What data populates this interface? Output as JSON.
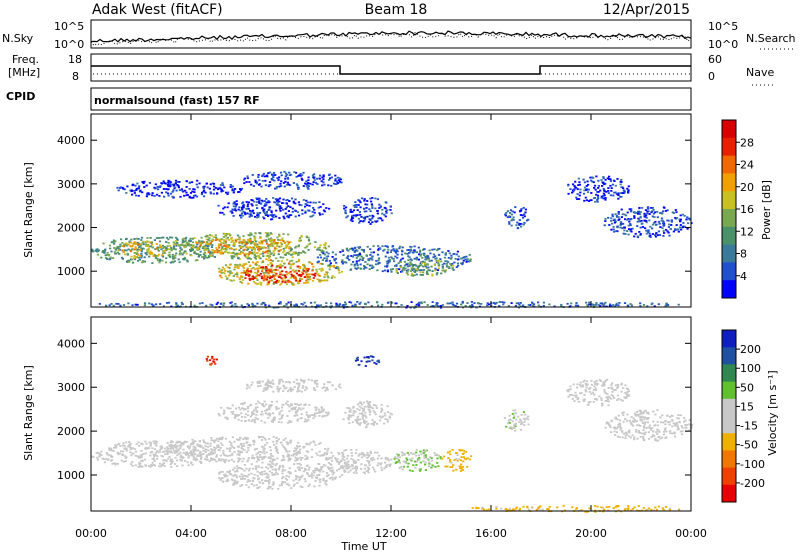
{
  "header": {
    "title_left": "Adak West (fitACF)",
    "title_center": "Beam 18",
    "title_right": "12/Apr/2015"
  },
  "top_panels": {
    "nsky_label": "N.Sky",
    "nsky_ticks": [
      "10^5",
      "10^0"
    ],
    "nsearch_label": "N.Search",
    "nsearch_ticks": [
      "10^5",
      "10^0"
    ],
    "freq_label_1": "Freq.",
    "freq_label_2": "[MHz]",
    "freq_ticks": [
      "18",
      "8"
    ],
    "nave_label": "Nave",
    "nave_ticks": [
      "60",
      "0"
    ],
    "cpid_label": "CPID",
    "cpid_text": "normalsound (fast) 157 RF"
  },
  "chart_data": [
    {
      "type": "heatmap",
      "panel": "power",
      "ylabel": "Slant Range [km]",
      "yticks": [
        "4000",
        "3000",
        "2000",
        "1000"
      ],
      "ylim": [
        180,
        4600
      ],
      "xlim": [
        0,
        24
      ],
      "colorbar_label": "Power [dB]",
      "colorbar_ticks": [
        "28",
        "24",
        "20",
        "16",
        "12",
        "8",
        "4"
      ],
      "colorscale": [
        "#0000ff",
        "#2050d0",
        "#3c7a9a",
        "#4a9068",
        "#7aa850",
        "#c8c020",
        "#f0a000",
        "#f06800",
        "#e82000",
        "#d80000"
      ],
      "regions": [
        {
          "t0": 0.0,
          "t1": 5.0,
          "r0": 1200,
          "r1": 1800,
          "v": 12
        },
        {
          "t0": 1.0,
          "t1": 3.0,
          "r0": 1300,
          "r1": 1700,
          "v": 18
        },
        {
          "t0": 3.0,
          "t1": 9.5,
          "r0": 1300,
          "r1": 1900,
          "v": 14
        },
        {
          "t0": 4.0,
          "t1": 8.0,
          "r0": 1400,
          "r1": 1800,
          "v": 20
        },
        {
          "t0": 5.0,
          "t1": 10.0,
          "r0": 700,
          "r1": 1300,
          "v": 18
        },
        {
          "t0": 6.0,
          "t1": 9.0,
          "r0": 750,
          "r1": 1150,
          "v": 26
        },
        {
          "t0": 9.0,
          "t1": 15.2,
          "r0": 1000,
          "r1": 1600,
          "v": 8
        },
        {
          "t0": 12.0,
          "t1": 14.5,
          "r0": 900,
          "r1": 1300,
          "v": 14
        },
        {
          "t0": 5.0,
          "t1": 9.5,
          "r0": 2200,
          "r1": 2700,
          "v": 5
        },
        {
          "t0": 6.0,
          "t1": 10.0,
          "r0": 2900,
          "r1": 3300,
          "v": 5
        },
        {
          "t0": 1.0,
          "t1": 6.0,
          "r0": 2700,
          "r1": 3100,
          "v": 4
        },
        {
          "t0": 10.0,
          "t1": 12.0,
          "r0": 2100,
          "r1": 2700,
          "v": 5
        },
        {
          "t0": 16.5,
          "t1": 17.5,
          "r0": 2000,
          "r1": 2500,
          "v": 6
        },
        {
          "t0": 19.0,
          "t1": 21.5,
          "r0": 2600,
          "r1": 3200,
          "v": 5
        },
        {
          "t0": 20.5,
          "t1": 24.0,
          "r0": 1800,
          "r1": 2500,
          "v": 6
        },
        {
          "t0": 0.0,
          "t1": 24.0,
          "r0": 180,
          "r1": 320,
          "v": 8
        }
      ]
    },
    {
      "type": "heatmap",
      "panel": "velocity",
      "ylabel": "Slant Range [km]",
      "yticks": [
        "4000",
        "3000",
        "2000",
        "1000"
      ],
      "ylim": [
        180,
        4600
      ],
      "xlim": [
        0,
        24
      ],
      "xticks": [
        "00:00",
        "04:00",
        "08:00",
        "12:00",
        "16:00",
        "20:00",
        "00:00"
      ],
      "xlabel": "Time UT",
      "colorbar_label": "Velocity [m s⁻¹]",
      "colorbar_ticks": [
        "200",
        "100",
        "50",
        "15",
        "-15",
        "-50",
        "-100",
        "-200"
      ],
      "colorscale": [
        "#e80000",
        "#f04000",
        "#f07800",
        "#f0b000",
        "#c8c8c8",
        "#c8c8c8",
        "#60c030",
        "#308850",
        "#2050a0",
        "#1020c0"
      ],
      "regions": [
        {
          "t0": 0.0,
          "t1": 5.0,
          "r0": 1200,
          "r1": 1800,
          "v": 0
        },
        {
          "t0": 3.0,
          "t1": 9.5,
          "r0": 1300,
          "r1": 1900,
          "v": 0
        },
        {
          "t0": 5.0,
          "t1": 10.0,
          "r0": 700,
          "r1": 1300,
          "v": 0
        },
        {
          "t0": 9.0,
          "t1": 12.0,
          "r0": 1050,
          "r1": 1600,
          "v": 0
        },
        {
          "t0": 12.0,
          "t1": 14.0,
          "r0": 1100,
          "r1": 1600,
          "v": 50
        },
        {
          "t0": 14.0,
          "t1": 15.2,
          "r0": 1100,
          "r1": 1600,
          "v": -60
        },
        {
          "t0": 5.0,
          "t1": 9.5,
          "r0": 2200,
          "r1": 2700,
          "v": 0
        },
        {
          "t0": 6.0,
          "t1": 10.0,
          "r0": 2900,
          "r1": 3200,
          "v": 0
        },
        {
          "t0": 10.0,
          "t1": 12.0,
          "r0": 2100,
          "r1": 2700,
          "v": 0
        },
        {
          "t0": 16.5,
          "t1": 17.5,
          "r0": 2000,
          "r1": 2500,
          "v": 40
        },
        {
          "t0": 19.0,
          "t1": 21.5,
          "r0": 2600,
          "r1": 3200,
          "v": 0
        },
        {
          "t0": 20.5,
          "t1": 24.0,
          "r0": 1800,
          "r1": 2500,
          "v": 0
        },
        {
          "t0": 15.0,
          "t1": 24.0,
          "r0": 180,
          "r1": 320,
          "v": -60
        },
        {
          "t0": 10.5,
          "t1": 11.5,
          "r0": 3500,
          "r1": 3750,
          "v": 200
        },
        {
          "t0": 4.5,
          "t1": 5.0,
          "r0": 3500,
          "r1": 3750,
          "v": -200
        }
      ]
    }
  ]
}
